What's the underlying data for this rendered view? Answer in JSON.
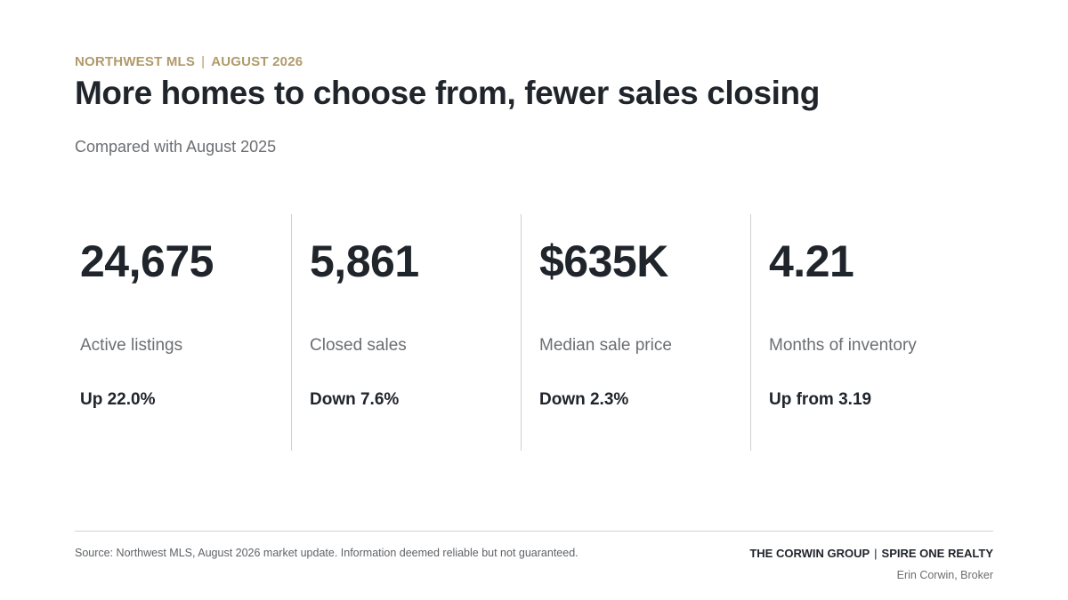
{
  "header": {
    "kicker_source": "NORTHWEST MLS",
    "kicker_separator": "|",
    "kicker_period": "AUGUST 2026",
    "title": "More homes to choose from, fewer sales closing",
    "subtitle": "Compared with August 2025"
  },
  "stats": [
    {
      "value": "24,675",
      "label": "Active listings",
      "change": "Up 22.0%"
    },
    {
      "value": "5,861",
      "label": "Closed sales",
      "change": "Down 7.6%"
    },
    {
      "value": "$635K",
      "label": "Median sale price",
      "change": "Down 2.3%"
    },
    {
      "value": "4.21",
      "label": "Months of inventory",
      "change": "Up from 3.19"
    }
  ],
  "footer": {
    "source": "Source: Northwest MLS, August 2026 market update. Information deemed reliable but not guaranteed.",
    "brand_team": "THE CORWIN GROUP",
    "brand_separator": "|",
    "brand_brokerage": "SPIRE ONE REALTY",
    "agent": "Erin Corwin, Broker"
  },
  "colors": {
    "accent": "#b09a6a",
    "text_primary": "#20252b",
    "text_secondary": "#6b6e72",
    "divider": "#cfcfcf"
  }
}
